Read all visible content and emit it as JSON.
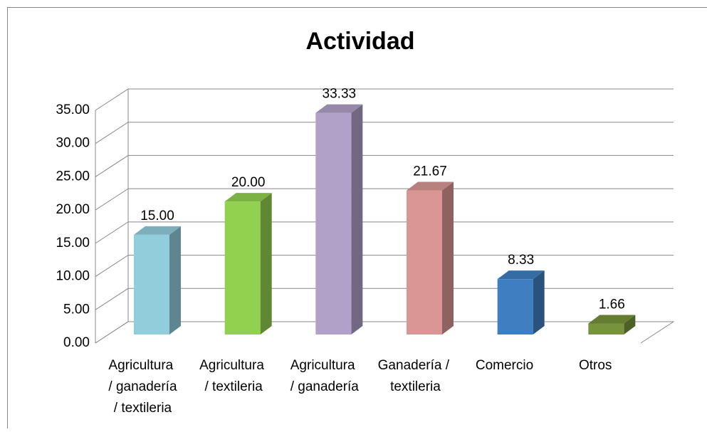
{
  "chart_data": {
    "type": "bar3d",
    "title": "Actividad",
    "categories": [
      "Agricultura / ganadería / textileria",
      "Agricultura / textileria",
      "Agricultura / ganadería",
      "Ganadería / textileria",
      "Comercio",
      "Otros"
    ],
    "values": [
      15,
      20,
      33.33,
      21.67,
      8.33,
      1.66
    ],
    "value_labels": [
      "15.00",
      "20.00",
      "33.33",
      "21.67",
      "8.33",
      "1.66"
    ],
    "colors": [
      "#92cddc",
      "#92d050",
      "#b1a0c7",
      "#d99694",
      "#3f7fc1",
      "#77933c"
    ],
    "ylim": [
      0,
      35
    ],
    "yticks": [
      {
        "value": 0,
        "label": "0.00"
      },
      {
        "value": 5,
        "label": "5.00"
      },
      {
        "value": 10,
        "label": "10.00"
      },
      {
        "value": 15,
        "label": "15.00"
      },
      {
        "value": 20,
        "label": "20.00"
      },
      {
        "value": 25,
        "label": "25.00"
      },
      {
        "value": 30,
        "label": "30.00"
      },
      {
        "value": 35,
        "label": "35.00"
      }
    ],
    "grid": true
  }
}
